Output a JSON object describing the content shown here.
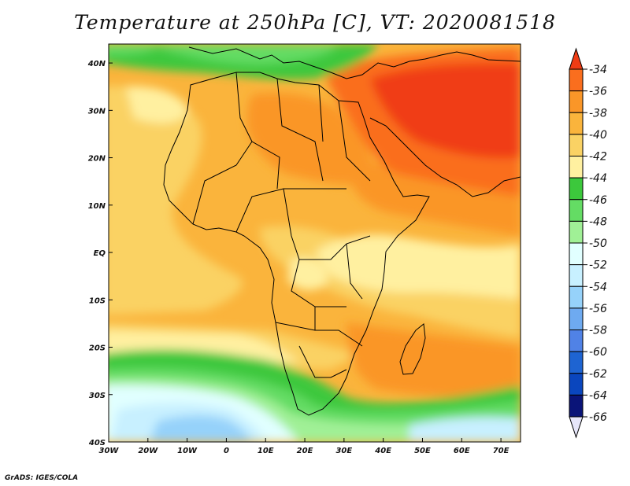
{
  "title": "Temperature at 250hPa [C], VT: 2020081518",
  "credit": "GrADS: IGES/COLA",
  "map": {
    "lon_range": [
      -30,
      75
    ],
    "lat_range": [
      -40,
      44
    ],
    "x_ticks": [
      {
        "value": -30,
        "label": "30W"
      },
      {
        "value": -20,
        "label": "20W"
      },
      {
        "value": -10,
        "label": "10W"
      },
      {
        "value": 0,
        "label": "0"
      },
      {
        "value": 10,
        "label": "10E"
      },
      {
        "value": 20,
        "label": "20E"
      },
      {
        "value": 30,
        "label": "30E"
      },
      {
        "value": 40,
        "label": "40E"
      },
      {
        "value": 50,
        "label": "50E"
      },
      {
        "value": 60,
        "label": "60E"
      },
      {
        "value": 70,
        "label": "70E"
      }
    ],
    "y_ticks": [
      {
        "value": 40,
        "label": "40N"
      },
      {
        "value": 30,
        "label": "30N"
      },
      {
        "value": 20,
        "label": "20N"
      },
      {
        "value": 10,
        "label": "10N"
      },
      {
        "value": 0,
        "label": "EQ"
      },
      {
        "value": -10,
        "label": "10S"
      },
      {
        "value": -20,
        "label": "20S"
      },
      {
        "value": -30,
        "label": "30S"
      },
      {
        "value": -40,
        "label": "40S"
      }
    ]
  },
  "colorbar": {
    "labels": [
      "-34",
      "-36",
      "-38",
      "-40",
      "-42",
      "-44",
      "-46",
      "-48",
      "-50",
      "-52",
      "-54",
      "-56",
      "-58",
      "-60",
      "-62",
      "-64",
      "-66"
    ],
    "colors": [
      "#f03c14",
      "#fa6e1e",
      "#fa9628",
      "#fab43c",
      "#fad264",
      "#fff0a0",
      "#3cc83c",
      "#64dc64",
      "#a0f096",
      "#e1ffff",
      "#c8f0ff",
      "#96d2fa",
      "#6eaaf0",
      "#5082e6",
      "#1e64d2",
      "#0a46be",
      "#0a1478",
      "#e6e6fa"
    ]
  },
  "colors": {
    "background": "#fab43c",
    "coast": "#000000"
  }
}
